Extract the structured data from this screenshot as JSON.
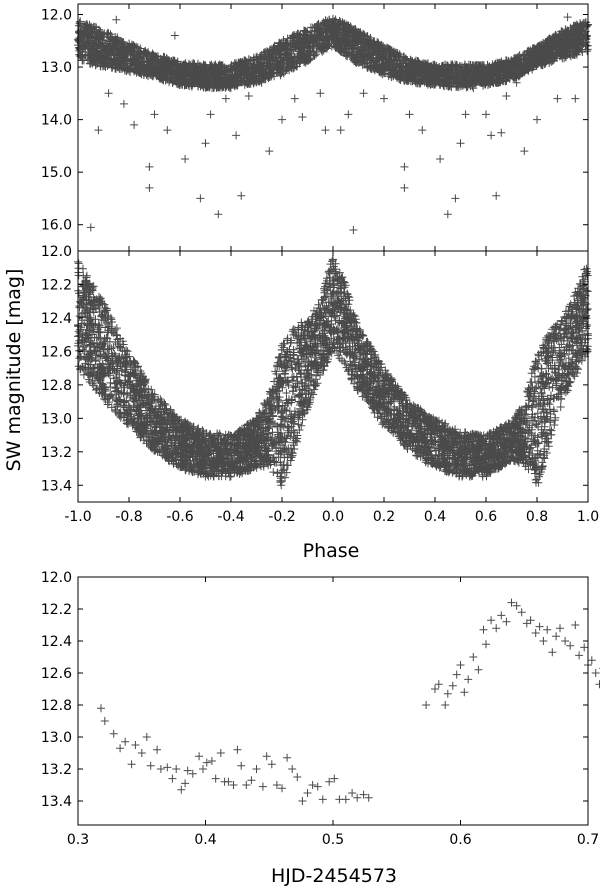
{
  "chart_data": [
    {
      "type": "scatter",
      "panel": "top",
      "xlabel": "",
      "ylabel": "",
      "xlim": [
        -1.0,
        1.0
      ],
      "ylim": [
        11.8,
        16.5
      ],
      "y_reversed": true,
      "x_ticks": [
        -1.0,
        -0.8,
        -0.6,
        -0.4,
        -0.2,
        0.0,
        0.2,
        0.4,
        0.6,
        0.8,
        1.0
      ],
      "x_tick_labels_shown": false,
      "y_ticks": [
        12.0,
        13.0,
        14.0,
        15.0,
        16.0
      ],
      "y_tick_labels": [
        "12.0",
        "13.0",
        "14.0",
        "15.0",
        "16.0"
      ],
      "marker": "plus",
      "marker_color": "#4a4a4a",
      "series": [
        {
          "band_envelope": {
            "x": [
              -1.0,
              -0.9,
              -0.8,
              -0.7,
              -0.6,
              -0.5,
              -0.4,
              -0.3,
              -0.2,
              -0.1,
              0.0,
              0.1,
              0.2,
              0.3,
              0.4,
              0.5,
              0.6,
              0.7,
              0.8,
              0.9,
              1.0
            ],
            "y_upper": [
              12.1,
              12.3,
              12.55,
              12.75,
              12.9,
              12.95,
              12.95,
              12.8,
              12.5,
              12.25,
              12.05,
              12.3,
              12.6,
              12.85,
              12.95,
              12.95,
              12.95,
              12.85,
              12.6,
              12.3,
              12.1
            ],
            "y_lower": [
              12.9,
              13.0,
              13.1,
              13.2,
              13.35,
              13.4,
              13.4,
              13.3,
              13.15,
              12.9,
              12.6,
              12.95,
              13.15,
              13.3,
              13.35,
              13.4,
              13.35,
              13.25,
              13.0,
              12.85,
              12.7
            ]
          },
          "outliers": [
            [
              -0.95,
              16.05
            ],
            [
              -0.92,
              14.2
            ],
            [
              -0.88,
              13.5
            ],
            [
              -0.85,
              12.1
            ],
            [
              -0.82,
              13.7
            ],
            [
              -0.78,
              14.1
            ],
            [
              -0.72,
              14.9
            ],
            [
              -0.72,
              15.3
            ],
            [
              -0.7,
              13.9
            ],
            [
              -0.65,
              14.2
            ],
            [
              -0.62,
              12.4
            ],
            [
              -0.58,
              14.75
            ],
            [
              -0.55,
              13.3
            ],
            [
              -0.52,
              15.5
            ],
            [
              -0.5,
              14.45
            ],
            [
              -0.48,
              13.9
            ],
            [
              -0.45,
              15.8
            ],
            [
              -0.42,
              13.6
            ],
            [
              -0.38,
              14.3
            ],
            [
              -0.36,
              15.45
            ],
            [
              -0.33,
              13.55
            ],
            [
              -0.28,
              13.3
            ],
            [
              -0.25,
              14.6
            ],
            [
              -0.2,
              14.0
            ],
            [
              -0.15,
              13.6
            ],
            [
              -0.12,
              13.95
            ],
            [
              -0.05,
              13.5
            ],
            [
              -0.03,
              14.2
            ],
            [
              0.03,
              14.2
            ],
            [
              0.06,
              13.9
            ],
            [
              0.08,
              16.1
            ],
            [
              0.12,
              13.5
            ],
            [
              0.2,
              13.6
            ],
            [
              0.28,
              14.9
            ],
            [
              0.28,
              15.3
            ],
            [
              0.3,
              13.9
            ],
            [
              0.35,
              14.2
            ],
            [
              0.42,
              14.75
            ],
            [
              0.45,
              15.8
            ],
            [
              0.48,
              15.5
            ],
            [
              0.5,
              14.45
            ],
            [
              0.52,
              13.9
            ],
            [
              0.55,
              13.4
            ],
            [
              0.6,
              13.9
            ],
            [
              0.62,
              14.3
            ],
            [
              0.64,
              15.45
            ],
            [
              0.66,
              14.25
            ],
            [
              0.68,
              13.55
            ],
            [
              0.72,
              13.3
            ],
            [
              0.75,
              14.6
            ],
            [
              0.8,
              14.0
            ],
            [
              0.88,
              13.6
            ],
            [
              0.92,
              12.05
            ],
            [
              0.95,
              13.6
            ]
          ]
        }
      ]
    },
    {
      "type": "scatter",
      "panel": "middle",
      "xlabel": "Phase",
      "ylabel": "SW magnitude [mag]",
      "xlim": [
        -1.0,
        1.0
      ],
      "ylim": [
        12.0,
        13.5
      ],
      "y_reversed": true,
      "x_ticks": [
        -1.0,
        -0.8,
        -0.6,
        -0.4,
        -0.2,
        0.0,
        0.2,
        0.4,
        0.6,
        0.8,
        1.0
      ],
      "x_tick_labels": [
        "-1.0",
        "-0.8",
        "-0.6",
        "-0.4",
        "-0.2",
        "0.0",
        "0.2",
        "0.4",
        "0.6",
        "0.8",
        "1.0"
      ],
      "y_ticks": [
        12.0,
        12.2,
        12.4,
        12.6,
        12.8,
        13.0,
        13.2,
        13.4
      ],
      "y_tick_labels": [
        "12.0",
        "12.2",
        "12.4",
        "12.6",
        "12.8",
        "13.0",
        "13.2",
        "13.4"
      ],
      "marker": "plus",
      "marker_color": "#4a4a4a",
      "series": [
        {
          "band_envelope": {
            "x": [
              -1.0,
              -0.9,
              -0.8,
              -0.7,
              -0.6,
              -0.5,
              -0.4,
              -0.3,
              -0.25,
              -0.2,
              -0.15,
              -0.1,
              -0.05,
              0.0,
              0.05,
              0.1,
              0.2,
              0.3,
              0.4,
              0.5,
              0.6,
              0.7,
              0.75,
              0.8,
              0.85,
              0.9,
              0.95,
              1.0
            ],
            "y_upper": [
              12.05,
              12.3,
              12.6,
              12.85,
              13.0,
              13.08,
              13.1,
              13.0,
              12.85,
              12.55,
              12.45,
              12.4,
              12.3,
              12.02,
              12.2,
              12.45,
              12.7,
              12.9,
              13.0,
              13.08,
              13.1,
              13.02,
              12.9,
              12.6,
              12.48,
              12.4,
              12.25,
              12.05
            ],
            "y_lower": [
              12.7,
              12.9,
              13.05,
              13.2,
              13.3,
              13.35,
              13.35,
              13.3,
              13.28,
              13.42,
              13.2,
              12.95,
              12.75,
              12.6,
              12.7,
              12.85,
              13.05,
              13.2,
              13.3,
              13.35,
              13.35,
              13.25,
              13.28,
              13.42,
              13.15,
              12.9,
              12.75,
              12.6
            ]
          }
        }
      ]
    },
    {
      "type": "scatter",
      "panel": "bottom",
      "xlabel": "HJD-2454573",
      "ylabel": "",
      "xlim": [
        0.3,
        0.7
      ],
      "ylim": [
        12.0,
        13.55
      ],
      "y_reversed": true,
      "x_ticks": [
        0.3,
        0.4,
        0.5,
        0.6,
        0.7
      ],
      "x_tick_labels": [
        "0.3",
        "0.4",
        "0.5",
        "0.6",
        "0.7"
      ],
      "y_ticks": [
        12.0,
        12.2,
        12.4,
        12.6,
        12.8,
        13.0,
        13.2,
        13.4
      ],
      "y_tick_labels": [
        "12.0",
        "12.2",
        "12.4",
        "12.6",
        "12.8",
        "13.0",
        "13.2",
        "13.4"
      ],
      "marker": "plus",
      "marker_color": "#4a4a4a",
      "series": [
        {
          "x": [
            0.318,
            0.321,
            0.328,
            0.333,
            0.337,
            0.342,
            0.345,
            0.35,
            0.354,
            0.357,
            0.362,
            0.365,
            0.37,
            0.374,
            0.377,
            0.381,
            0.384,
            0.386,
            0.39,
            0.395,
            0.398,
            0.401,
            0.405,
            0.408,
            0.412,
            0.415,
            0.418,
            0.422,
            0.425,
            0.428,
            0.432,
            0.436,
            0.44,
            0.445,
            0.448,
            0.452,
            0.456,
            0.46,
            0.464,
            0.468,
            0.472,
            0.476,
            0.48,
            0.484,
            0.488,
            0.492,
            0.497,
            0.501,
            0.505,
            0.51,
            0.515,
            0.519,
            0.524,
            0.528
          ],
          "y": [
            12.82,
            12.9,
            12.98,
            13.07,
            13.03,
            13.17,
            13.05,
            13.1,
            13.0,
            13.18,
            13.08,
            13.2,
            13.19,
            13.26,
            13.2,
            13.33,
            13.29,
            13.21,
            13.23,
            13.12,
            13.2,
            13.16,
            13.15,
            13.26,
            13.1,
            13.28,
            13.28,
            13.3,
            13.08,
            13.18,
            13.3,
            13.27,
            13.2,
            13.31,
            13.12,
            13.17,
            13.3,
            13.32,
            13.13,
            13.2,
            13.25,
            13.4,
            13.35,
            13.3,
            13.31,
            13.39,
            13.28,
            13.26,
            13.39,
            13.39,
            13.35,
            13.38,
            13.36,
            13.38
          ]
        },
        {
          "x": [
            0.573,
            0.58,
            0.583,
            0.588,
            0.59,
            0.594,
            0.597,
            0.6,
            0.603,
            0.606,
            0.61,
            0.614,
            0.618,
            0.62,
            0.624,
            0.628,
            0.632,
            0.636,
            0.64,
            0.644,
            0.648,
            0.652,
            0.655,
            0.659,
            0.662,
            0.665,
            0.668,
            0.672,
            0.675,
            0.678,
            0.682,
            0.686,
            0.69,
            0.693,
            0.697,
            0.7,
            0.703,
            0.706,
            0.709,
            0.712,
            0.715,
            0.718,
            0.72
          ],
          "y": [
            12.8,
            12.7,
            12.67,
            12.8,
            12.73,
            12.68,
            12.61,
            12.55,
            12.72,
            12.64,
            12.5,
            12.58,
            12.33,
            12.42,
            12.27,
            12.32,
            12.24,
            12.28,
            12.16,
            12.18,
            12.22,
            12.29,
            12.27,
            12.35,
            12.31,
            12.4,
            12.33,
            12.47,
            12.37,
            12.32,
            12.4,
            12.43,
            12.3,
            12.49,
            12.44,
            12.55,
            12.52,
            12.6,
            12.67,
            12.57,
            12.62,
            12.9,
            12.48
          ]
        }
      ]
    }
  ]
}
